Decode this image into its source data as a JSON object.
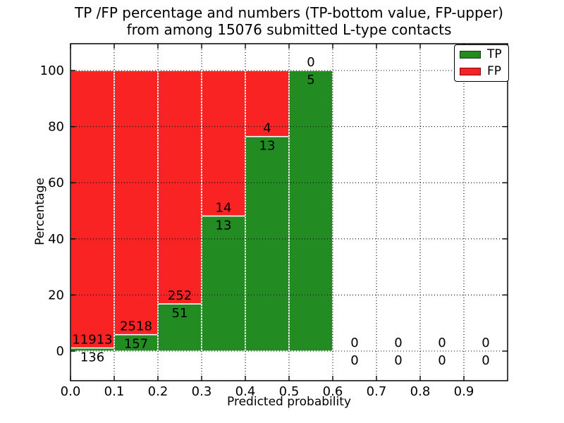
{
  "chart_data": {
    "type": "bar",
    "subtype": "stacked-percentage-histogram",
    "title_line1": "TP /FP percentage and numbers (TP-bottom value, FP-upper)",
    "title_line2": "from among 15076 submitted L-type contacts",
    "title": "TP /FP percentage and numbers (TP-bottom value, FP-upper) from among 15076 submitted L-type contacts",
    "xlabel": "Predicted probability",
    "ylabel": "Percentage",
    "xlim": [
      0.0,
      1.0
    ],
    "ylim": [
      -10.55,
      109.55
    ],
    "xticks": [
      "0.0",
      "0.1",
      "0.2",
      "0.3",
      "0.4",
      "0.5",
      "0.6",
      "0.7",
      "0.8",
      "0.9"
    ],
    "yticks": [
      0,
      20,
      40,
      60,
      80,
      100
    ],
    "grid": "dotted-black-both-axes",
    "bar_width": 0.1,
    "bar_edge_color": "#ffffff",
    "total_contacts": 15076,
    "legend": [
      {
        "label": "TP",
        "color": "#228b22"
      },
      {
        "label": "FP",
        "color": "#fa2323"
      }
    ],
    "legend_position": "upper-right",
    "bins": [
      {
        "range": [
          0.0,
          0.1
        ],
        "tp": 136,
        "fp": 11913,
        "tp_percent": 1.13
      },
      {
        "range": [
          0.1,
          0.2
        ],
        "tp": 157,
        "fp": 2518,
        "tp_percent": 5.87
      },
      {
        "range": [
          0.2,
          0.3
        ],
        "tp": 51,
        "fp": 252,
        "tp_percent": 16.83
      },
      {
        "range": [
          0.3,
          0.4
        ],
        "tp": 13,
        "fp": 14,
        "tp_percent": 48.15
      },
      {
        "range": [
          0.4,
          0.5
        ],
        "tp": 13,
        "fp": 4,
        "tp_percent": 76.47
      },
      {
        "range": [
          0.5,
          0.6
        ],
        "tp": 5,
        "fp": 0,
        "tp_percent": 100.0
      },
      {
        "range": [
          0.6,
          0.7
        ],
        "tp": 0,
        "fp": 0,
        "tp_percent": 0
      },
      {
        "range": [
          0.7,
          0.8
        ],
        "tp": 0,
        "fp": 0,
        "tp_percent": 0
      },
      {
        "range": [
          0.8,
          0.9
        ],
        "tp": 0,
        "fp": 0,
        "tp_percent": 0
      },
      {
        "range": [
          0.9,
          1.0
        ],
        "tp": 0,
        "fp": 0,
        "tp_percent": 0
      }
    ]
  }
}
